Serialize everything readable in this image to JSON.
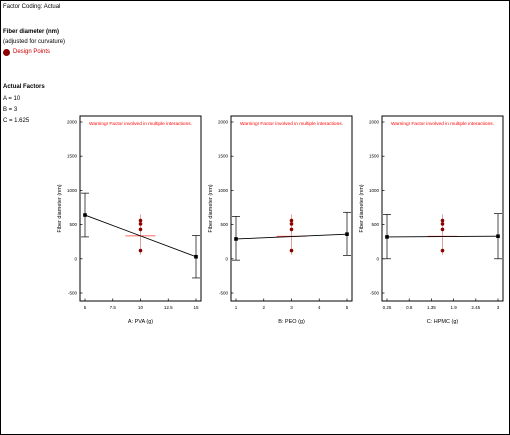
{
  "header": {
    "factor_coding": "Factor Coding: Actual",
    "response_title": "Fiber diameter  (nm)",
    "adjusted_note": "(adjusted for curvature)",
    "legend_label": "Design Points",
    "factors_title": "Actual Factors",
    "factor_values": [
      "A = 10",
      "B = 3",
      "C = 1.625"
    ]
  },
  "colors": {
    "warning": "#ff0000",
    "design_point": "#8b0000",
    "line": "#000000",
    "error_bar": "#d98a8a",
    "center_marker": "#ff3333"
  },
  "chart_data": [
    {
      "type": "line",
      "warning": "Warning! Factor involved in multiple interactions.",
      "xlabel": "A: PVA (g)",
      "ylabel": "Fiber diameter  (nm)",
      "xlim": [
        5,
        15
      ],
      "ylim": [
        -500,
        2000
      ],
      "xticks": [
        5,
        7.5,
        10,
        12.5,
        15
      ],
      "xtick_labels": [
        "5",
        "7.5",
        "10",
        "12.5",
        "15"
      ],
      "yticks": [
        -500,
        0,
        500,
        1000,
        1500,
        2000
      ],
      "ytick_labels": [
        "-500",
        "0",
        "500",
        "1000",
        "1500",
        "2000"
      ],
      "line": [
        [
          5,
          640
        ],
        [
          15,
          30
        ]
      ],
      "error_bars": [
        {
          "x": 5,
          "low": 320,
          "high": 960
        },
        {
          "x": 15,
          "low": -280,
          "high": 340
        }
      ],
      "design_points": [
        {
          "x": 10,
          "y": 560
        },
        {
          "x": 10,
          "y": 510
        },
        {
          "x": 10,
          "y": 430
        },
        {
          "x": 10,
          "y": 120
        }
      ],
      "center": {
        "x": 10,
        "y": 335,
        "low": 60,
        "high": 650
      }
    },
    {
      "type": "line",
      "warning": "Warning! Factor involved in multiple interactions.",
      "xlabel": "B: PEO (g)",
      "ylabel": "Fiber diameter  (nm)",
      "xlim": [
        1,
        5
      ],
      "ylim": [
        -500,
        2000
      ],
      "xticks": [
        1,
        2,
        3,
        4,
        5
      ],
      "xtick_labels": [
        "1",
        "2",
        "3",
        "4",
        "5"
      ],
      "yticks": [
        -500,
        0,
        500,
        1000,
        1500,
        2000
      ],
      "ytick_labels": [
        "-500",
        "0",
        "500",
        "1000",
        "1500",
        "2000"
      ],
      "line": [
        [
          1,
          290
        ],
        [
          5,
          360
        ]
      ],
      "error_bars": [
        {
          "x": 1,
          "low": -20,
          "high": 620
        },
        {
          "x": 5,
          "low": 50,
          "high": 680
        }
      ],
      "design_points": [
        {
          "x": 3,
          "y": 560
        },
        {
          "x": 3,
          "y": 510
        },
        {
          "x": 3,
          "y": 430
        },
        {
          "x": 3,
          "y": 120
        }
      ],
      "center": {
        "x": 3,
        "y": 330,
        "low": 60,
        "high": 650
      }
    },
    {
      "type": "line",
      "warning": "Warning! Factor involved in multiple interactions.",
      "xlabel": "C: HPMC (g)",
      "ylabel": "Fiber diameter  (nm)",
      "xlim": [
        0.25,
        3
      ],
      "ylim": [
        -500,
        2000
      ],
      "xticks": [
        0.25,
        0.8,
        1.35,
        1.9,
        2.45,
        3
      ],
      "xtick_labels": [
        "0.25",
        "0.8",
        "1.35",
        "1.9",
        "2.45",
        "3"
      ],
      "yticks": [
        -500,
        0,
        500,
        1000,
        1500,
        2000
      ],
      "ytick_labels": [
        "-500",
        "0",
        "500",
        "1000",
        "1500",
        "2000"
      ],
      "line": [
        [
          0.25,
          320
        ],
        [
          3,
          330
        ]
      ],
      "error_bars": [
        {
          "x": 0.25,
          "low": 0,
          "high": 650
        },
        {
          "x": 3,
          "low": 0,
          "high": 660
        }
      ],
      "design_points": [
        {
          "x": 1.625,
          "y": 560
        },
        {
          "x": 1.625,
          "y": 510
        },
        {
          "x": 1.625,
          "y": 430
        },
        {
          "x": 1.625,
          "y": 120
        }
      ],
      "center": {
        "x": 1.625,
        "y": 330,
        "low": 60,
        "high": 650
      }
    }
  ]
}
